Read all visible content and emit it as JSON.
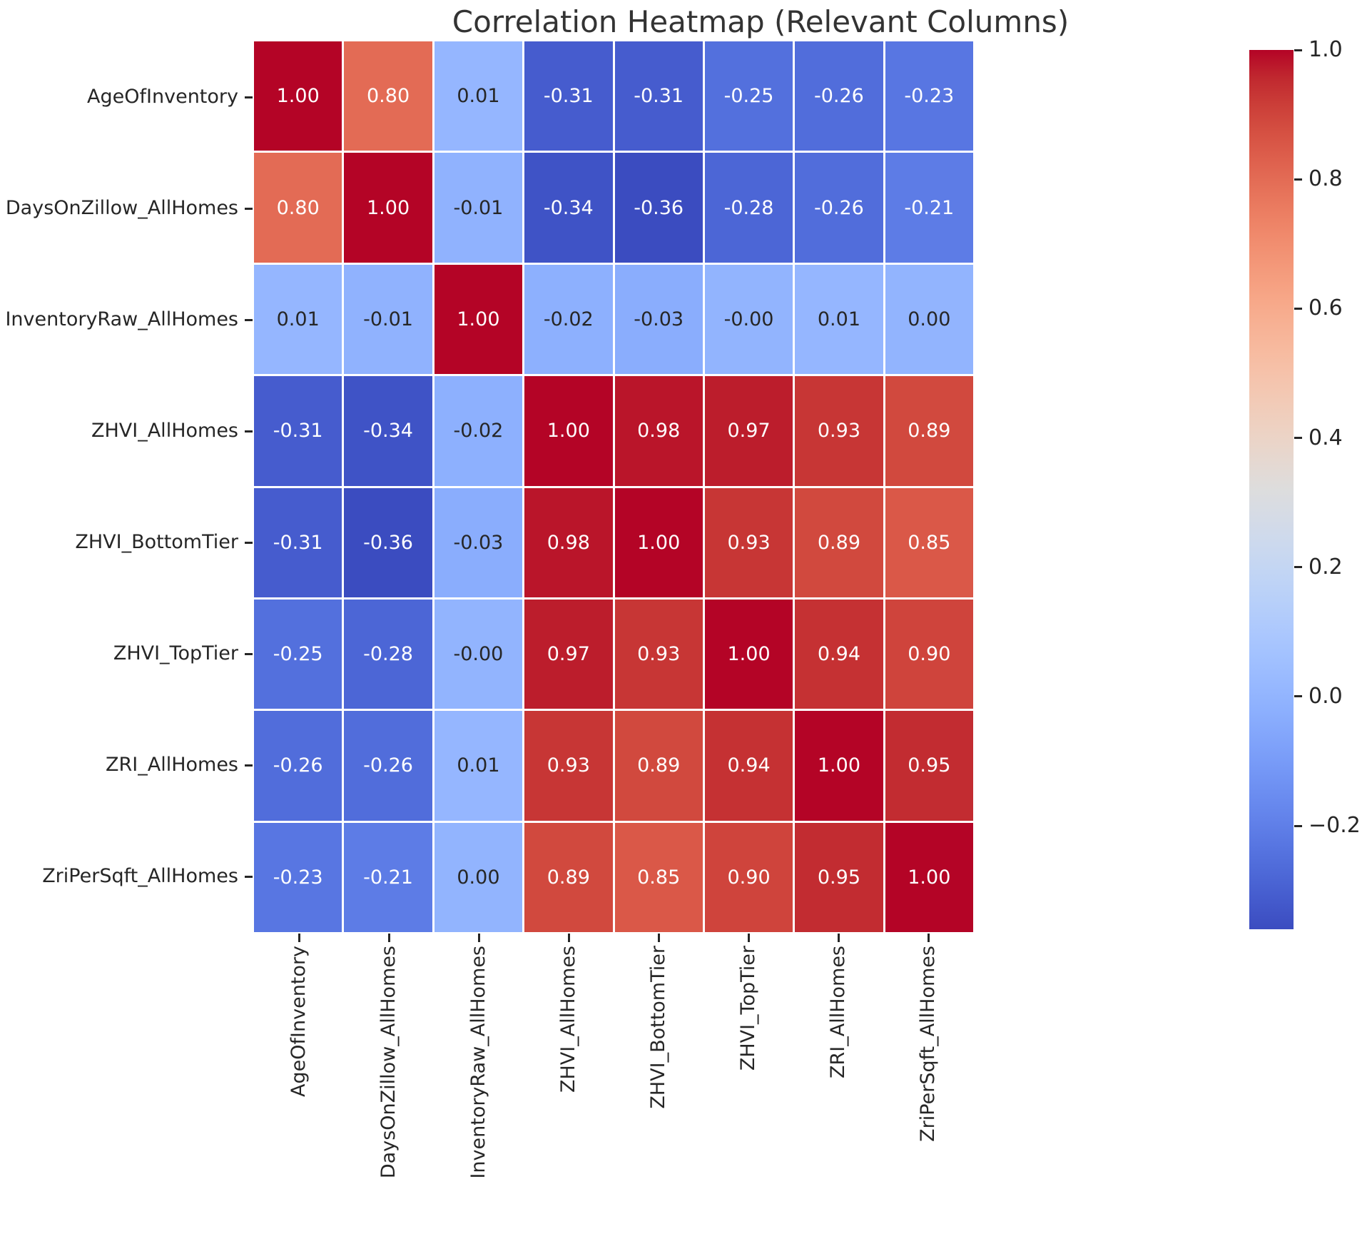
{
  "title": "Correlation Heatmap (Relevant Columns)",
  "chart_data": {
    "type": "heatmap",
    "title": "Correlation Heatmap (Relevant Columns)",
    "categories": [
      "AgeOfInventory",
      "DaysOnZillow_AllHomes",
      "InventoryRaw_AllHomes",
      "ZHVI_AllHomes",
      "ZHVI_BottomTier",
      "ZHVI_TopTier",
      "ZRI_AllHomes",
      "ZriPerSqft_AllHomes"
    ],
    "matrix_values": [
      [
        1.0,
        0.8,
        0.01,
        -0.31,
        -0.31,
        -0.25,
        -0.26,
        -0.23
      ],
      [
        0.8,
        1.0,
        -0.01,
        -0.34,
        -0.36,
        -0.28,
        -0.26,
        -0.21
      ],
      [
        0.01,
        -0.01,
        1.0,
        -0.02,
        -0.03,
        -0.001,
        0.01,
        0.001
      ],
      [
        -0.31,
        -0.34,
        -0.02,
        1.0,
        0.98,
        0.97,
        0.93,
        0.89
      ],
      [
        -0.31,
        -0.36,
        -0.03,
        0.98,
        1.0,
        0.93,
        0.89,
        0.85
      ],
      [
        -0.25,
        -0.28,
        -0.001,
        0.97,
        0.93,
        1.0,
        0.94,
        0.9
      ],
      [
        -0.26,
        -0.26,
        0.01,
        0.93,
        0.89,
        0.94,
        1.0,
        0.95
      ],
      [
        -0.23,
        -0.21,
        0.001,
        0.89,
        0.85,
        0.9,
        0.95,
        1.0
      ]
    ],
    "matrix_labels": [
      [
        "1.00",
        "0.80",
        "0.01",
        "-0.31",
        "-0.31",
        "-0.25",
        "-0.26",
        "-0.23"
      ],
      [
        "0.80",
        "1.00",
        "-0.01",
        "-0.34",
        "-0.36",
        "-0.28",
        "-0.26",
        "-0.21"
      ],
      [
        "0.01",
        "-0.01",
        "1.00",
        "-0.02",
        "-0.03",
        "-0.00",
        "0.01",
        "0.00"
      ],
      [
        "-0.31",
        "-0.34",
        "-0.02",
        "1.00",
        "0.98",
        "0.97",
        "0.93",
        "0.89"
      ],
      [
        "-0.31",
        "-0.36",
        "-0.03",
        "0.98",
        "1.00",
        "0.93",
        "0.89",
        "0.85"
      ],
      [
        "-0.25",
        "-0.28",
        "-0.00",
        "0.97",
        "0.93",
        "1.00",
        "0.94",
        "0.90"
      ],
      [
        "-0.26",
        "-0.26",
        "0.01",
        "0.93",
        "0.89",
        "0.94",
        "1.00",
        "0.95"
      ],
      [
        "-0.23",
        "-0.21",
        "0.00",
        "0.89",
        "0.85",
        "0.90",
        "0.95",
        "1.00"
      ]
    ],
    "colormap": "coolwarm",
    "vmin": -0.36,
    "vmax": 1.0,
    "grid_line_color": "#ffffff",
    "annotation_text_dark": "#262626",
    "annotation_text_light": "#ffffff",
    "legend_position": "right",
    "colorbar": {
      "tick_labels": [
        "1.0",
        "0.8",
        "0.6",
        "0.4",
        "0.2",
        "0.0",
        "−0.2"
      ],
      "tick_values": [
        1.0,
        0.8,
        0.6,
        0.4,
        0.2,
        0.0,
        -0.2
      ],
      "top_color": "#b40426",
      "bottom_color": "#3b4cc0"
    },
    "colormap_stops": [
      "#3b4cc0",
      "#445acc",
      "#4d68d7",
      "#5775e1",
      "#6282ea",
      "#6c8ef1",
      "#779af7",
      "#82a5fb",
      "#8db0fe",
      "#98b9ff",
      "#a3c2ff",
      "#aec9fd",
      "#b8d0f9",
      "#c2d5f4",
      "#ccd9ee",
      "#d5dbe6",
      "#dddddd",
      "#e5d8d1",
      "#ecd3c5",
      "#f1ccb9",
      "#f5c4ad",
      "#f7bba0",
      "#f7b194",
      "#f7a687",
      "#f49a7b",
      "#f18d6f",
      "#ec7f63",
      "#e57058",
      "#de604d",
      "#d55042",
      "#cb3e38",
      "#c0282f",
      "#b40426"
    ],
    "title_color": "#333333"
  }
}
